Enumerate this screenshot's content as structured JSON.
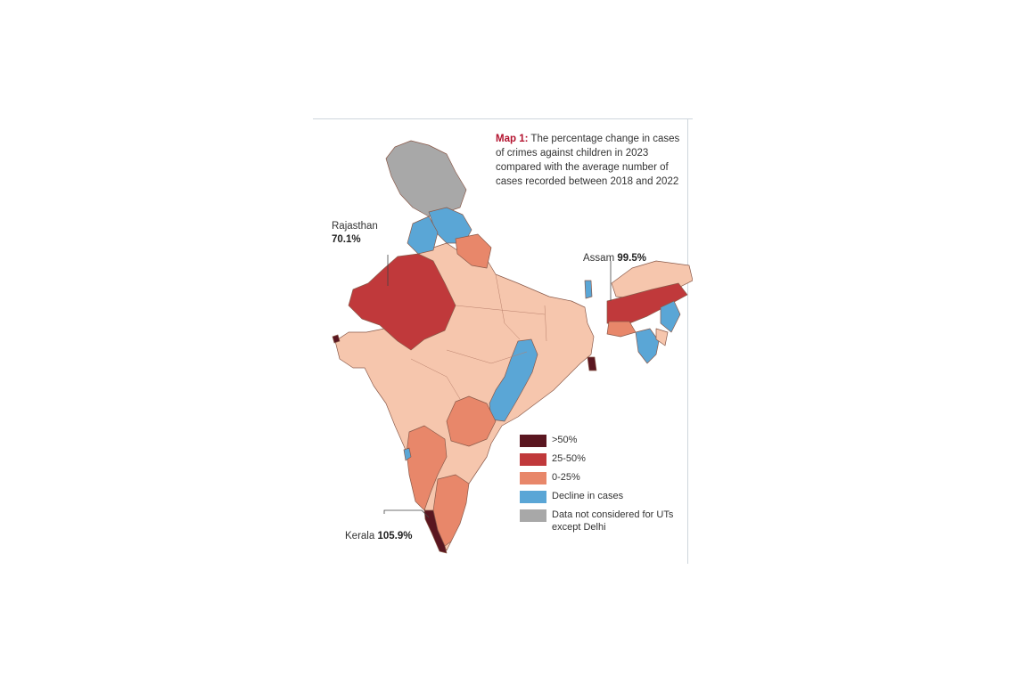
{
  "caption": {
    "lead": "Map 1:",
    "text": "The percentage change in cases of crimes against children in 2023 compared with the average number of cases recorded between 2018 and 2022"
  },
  "callouts": {
    "rajasthan": {
      "name": "Rajasthan",
      "value": "70.1%"
    },
    "assam": {
      "name": "Assam",
      "value": "99.5%"
    },
    "kerala": {
      "name": "Kerala",
      "value": "105.9%"
    }
  },
  "legend": [
    {
      "label": ">50%",
      "color": "#5a1620"
    },
    {
      "label": "25-50%",
      "color": "#c0393b"
    },
    {
      "label": "0-25%",
      "color": "#e8876a"
    },
    {
      "label": "Decline in cases",
      "color": "#5aa6d6"
    },
    {
      "label": "Data not considered for UTs except Delhi",
      "color": "#a8a8a8"
    }
  ],
  "colors": {
    "over50": "#5a1620",
    "c25to50": "#c0393b",
    "c0to25": "#e8876a",
    "low": "#f6c6ad",
    "decline": "#5aa6d6",
    "na": "#a8a8a8"
  }
}
